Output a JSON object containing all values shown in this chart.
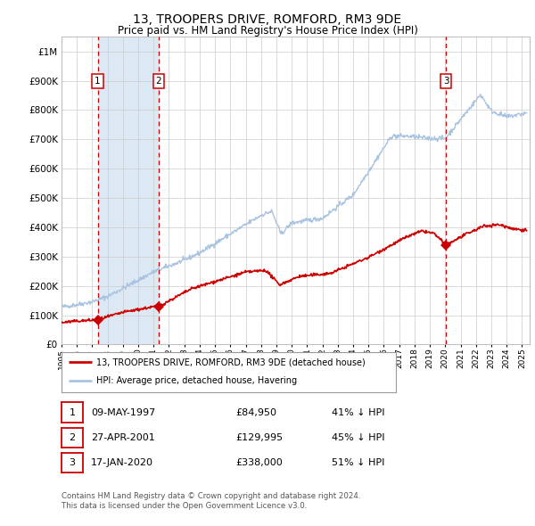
{
  "title": "13, TROOPERS DRIVE, ROMFORD, RM3 9DE",
  "subtitle": "Price paid vs. HM Land Registry's House Price Index (HPI)",
  "legend_line1": "13, TROOPERS DRIVE, ROMFORD, RM3 9DE (detached house)",
  "legend_line2": "HPI: Average price, detached house, Havering",
  "footer1": "Contains HM Land Registry data © Crown copyright and database right 2024.",
  "footer2": "This data is licensed under the Open Government Licence v3.0.",
  "purchases": [
    {
      "num": 1,
      "date": "09-MAY-1997",
      "price": 84950,
      "pct": "41% ↓ HPI",
      "year": 1997.36
    },
    {
      "num": 2,
      "date": "27-APR-2001",
      "price": 129995,
      "pct": "45% ↓ HPI",
      "year": 2001.32
    },
    {
      "num": 3,
      "date": "17-JAN-2020",
      "price": 338000,
      "pct": "51% ↓ HPI",
      "year": 2020.04
    }
  ],
  "hpi_color": "#a8c4e0",
  "price_color": "#cc0000",
  "dashed_color": "#cc0000",
  "shaded_color": "#dce9f5",
  "background_color": "#ffffff",
  "grid_color": "#cccccc",
  "ylim_max": 1050000,
  "xlim_start": 1995.0,
  "xlim_end": 2025.5,
  "yticks": [
    0,
    100000,
    200000,
    300000,
    400000,
    500000,
    600000,
    700000,
    800000,
    900000,
    1000000
  ]
}
